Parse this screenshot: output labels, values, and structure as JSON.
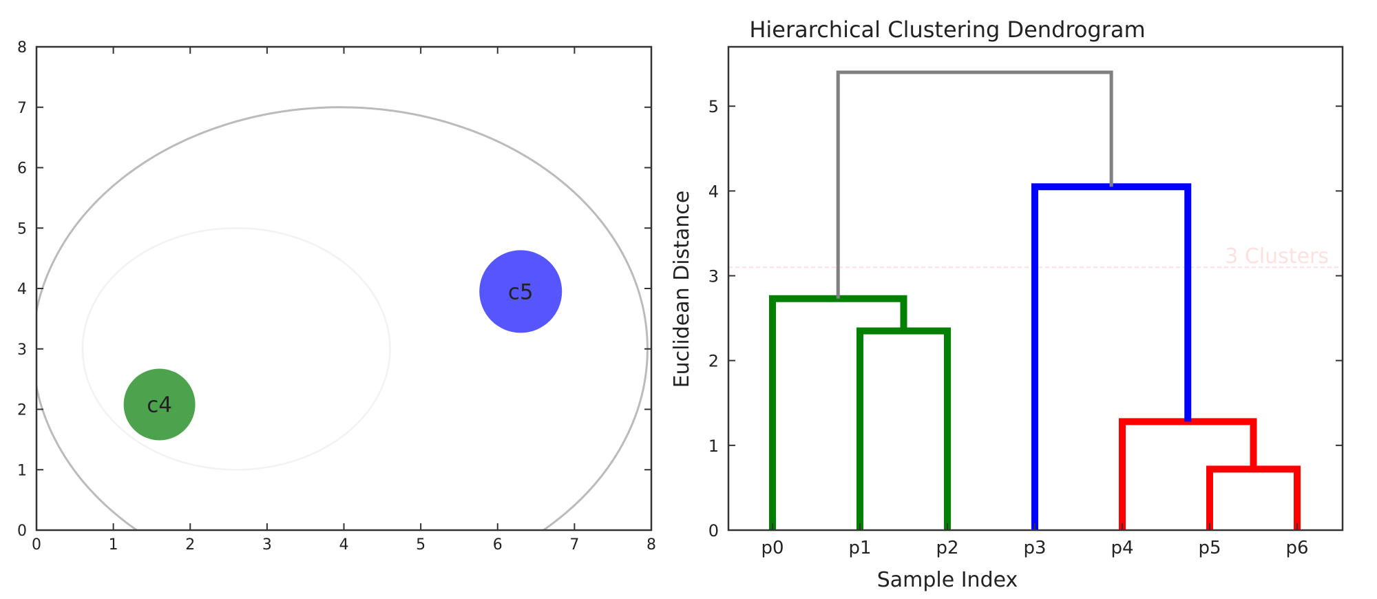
{
  "chart_data": [
    {
      "type": "scatter",
      "title": "",
      "xlabel": "",
      "ylabel": "",
      "xlim": [
        0,
        8
      ],
      "ylim": [
        0,
        8
      ],
      "xticks": [
        0,
        1,
        2,
        3,
        4,
        5,
        6,
        7,
        8
      ],
      "yticks": [
        0,
        1,
        2,
        3,
        4,
        5,
        6,
        7,
        8
      ],
      "grid": false,
      "enclosing_circle": {
        "center": [
          3.95,
          3.0
        ],
        "radius": 4.0,
        "color": "#bbbbbb"
      },
      "faint_circles": [
        {
          "center": [
            2.6,
            3.0
          ],
          "radius": 2.0,
          "color": "#f2f2f2"
        }
      ],
      "points": [
        {
          "label": "c4",
          "x": 1.6,
          "y": 2.08,
          "color": "#3e9a3e"
        },
        {
          "label": "c5",
          "x": 6.3,
          "y": 3.95,
          "color": "#4848ff"
        }
      ]
    },
    {
      "type": "dendrogram",
      "title": "Hierarchical Clustering Dendrogram",
      "xlabel": "Sample Index",
      "ylabel": "Euclidean Distance",
      "ylim": [
        0,
        5.7
      ],
      "yticks": [
        0,
        1,
        2,
        3,
        4,
        5
      ],
      "leaves": [
        "p0",
        "p1",
        "p2",
        "p3",
        "p4",
        "p5",
        "p6"
      ],
      "cutoff": {
        "y": 3.1,
        "label": "3 Clusters",
        "color": "#ffe0e0"
      },
      "links": [
        {
          "left": [
            0,
            0
          ],
          "right": [
            1.5,
            2.35
          ],
          "height": 2.73,
          "color": "#008000"
        },
        {
          "left": [
            1,
            0
          ],
          "right": [
            2,
            0
          ],
          "height": 2.35,
          "color": "#008000"
        },
        {
          "left": [
            5,
            0
          ],
          "right": [
            6,
            0
          ],
          "height": 0.72,
          "color": "#ff0000"
        },
        {
          "left": [
            4,
            0
          ],
          "right": [
            5.5,
            0.72
          ],
          "height": 1.28,
          "color": "#ff0000"
        },
        {
          "left": [
            3,
            0
          ],
          "right": [
            4.75,
            1.28
          ],
          "height": 4.05,
          "color": "#0000ff"
        },
        {
          "left": [
            0.75,
            2.73
          ],
          "right": [
            3.875,
            4.05
          ],
          "height": 5.4,
          "color": "#808080"
        }
      ]
    }
  ]
}
